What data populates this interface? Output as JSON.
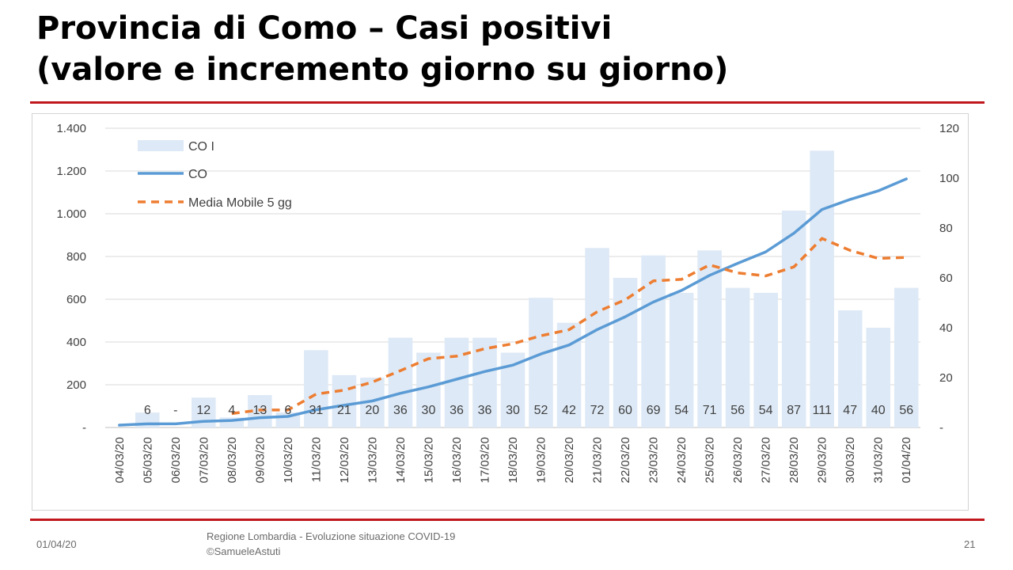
{
  "slide": {
    "title_line1": "Provincia di Como – Casi positivi",
    "title_line2": "(valore e incremento giorno su giorno)"
  },
  "footer": {
    "date": "01/04/20",
    "source_line1": "Regione Lombardia - Evoluzione situazione COVID-19",
    "source_line2": "©SamueleAstuti",
    "page_number": "21"
  },
  "colors": {
    "bars": "#dde9f6",
    "line": "#5b9bd5",
    "moving_average": "#ed7d31",
    "grid": "#d9d9d9",
    "rule": "#c0161c"
  },
  "chart_data": {
    "type": "bar+line",
    "title": "",
    "categories": [
      "04/03/20",
      "05/03/20",
      "06/03/20",
      "07/03/20",
      "08/03/20",
      "09/03/20",
      "10/03/20",
      "11/03/20",
      "12/03/20",
      "13/03/20",
      "14/03/20",
      "15/03/20",
      "16/03/20",
      "17/03/20",
      "18/03/20",
      "19/03/20",
      "20/03/20",
      "21/03/20",
      "22/03/20",
      "23/03/20",
      "24/03/20",
      "25/03/20",
      "26/03/20",
      "27/03/20",
      "28/03/20",
      "29/03/20",
      "30/03/20",
      "31/03/20",
      "01/04/20"
    ],
    "left_axis": {
      "ylim": [
        0,
        1400
      ],
      "ticks": [
        0,
        200,
        400,
        600,
        800,
        1000,
        1200,
        1400
      ],
      "tick_labels": [
        "-",
        "200",
        "400",
        "600",
        "800",
        "1.000",
        "1.200",
        "1.400"
      ]
    },
    "right_axis": {
      "ylim": [
        0,
        120
      ],
      "ticks": [
        0,
        20,
        40,
        60,
        80,
        100,
        120
      ],
      "tick_labels": [
        "-",
        "20",
        "40",
        "60",
        "80",
        "100",
        "120"
      ]
    },
    "series": [
      {
        "name": "CO I",
        "type": "bar",
        "axis": "right",
        "values": [
          0,
          6,
          0,
          12,
          4,
          13,
          6,
          31,
          21,
          20,
          36,
          30,
          36,
          36,
          30,
          52,
          42,
          72,
          60,
          69,
          54,
          71,
          56,
          54,
          87,
          111,
          47,
          40,
          56
        ],
        "data_labels": [
          "",
          "6",
          "-",
          "12",
          "4",
          "13",
          "6",
          "31",
          "21",
          "20",
          "36",
          "30",
          "36",
          "36",
          "30",
          "52",
          "42",
          "72",
          "60",
          "69",
          "54",
          "71",
          "56",
          "54",
          "87",
          "111",
          "47",
          "40",
          "56"
        ]
      },
      {
        "name": "CO",
        "type": "line",
        "axis": "left",
        "values": [
          11,
          17,
          17,
          29,
          33,
          46,
          52,
          83,
          104,
          124,
          160,
          190,
          226,
          262,
          292,
          344,
          386,
          458,
          518,
          587,
          641,
          712,
          768,
          822,
          909,
          1020,
          1067,
          1107,
          1163
        ]
      },
      {
        "name": "Media Mobile 5 gg",
        "type": "line-dashed",
        "axis": "right",
        "values": [
          null,
          null,
          null,
          null,
          5.6,
          7.0,
          7.0,
          13.4,
          15.0,
          18.2,
          22.8,
          27.6,
          28.6,
          31.6,
          33.6,
          36.8,
          39.2,
          46.4,
          51.2,
          58.8,
          59.4,
          65.2,
          62.0,
          60.8,
          64.4,
          75.8,
          71.0,
          67.8,
          68.2
        ]
      }
    ],
    "legend": {
      "position": "top-left",
      "entries": [
        "CO I",
        "CO",
        "Media Mobile 5 gg"
      ]
    },
    "grid": true
  }
}
